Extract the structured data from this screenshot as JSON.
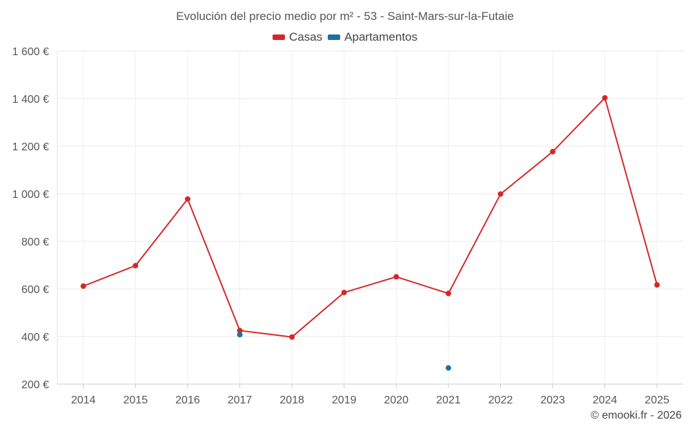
{
  "chart_data": {
    "type": "line",
    "title": "Evolución del precio medio por m² - 53 - Saint-Mars-sur-la-Futaie",
    "categories": [
      "2014",
      "2015",
      "2016",
      "2017",
      "2018",
      "2019",
      "2020",
      "2021",
      "2022",
      "2023",
      "2024",
      "2025"
    ],
    "ylim": [
      200,
      1600
    ],
    "yticks": [
      200,
      400,
      600,
      800,
      1000,
      1200,
      1400,
      1600
    ],
    "ytick_labels": [
      "200 €",
      "400 €",
      "600 €",
      "800 €",
      "1 000 €",
      "1 200 €",
      "1 400 €",
      "1 600 €"
    ],
    "series": [
      {
        "name": "Casas",
        "color": "#d62728",
        "values": [
          612,
          698,
          978,
          425,
          398,
          585,
          651,
          581,
          999,
          1177,
          1403,
          617
        ]
      },
      {
        "name": "Apartamentos",
        "color": "#1f6fa5",
        "values": [
          null,
          null,
          null,
          408,
          null,
          null,
          null,
          268,
          null,
          null,
          null,
          null
        ]
      }
    ],
    "grid": true,
    "legend": "top-center"
  },
  "credit": "© emooki.fr - 2026"
}
